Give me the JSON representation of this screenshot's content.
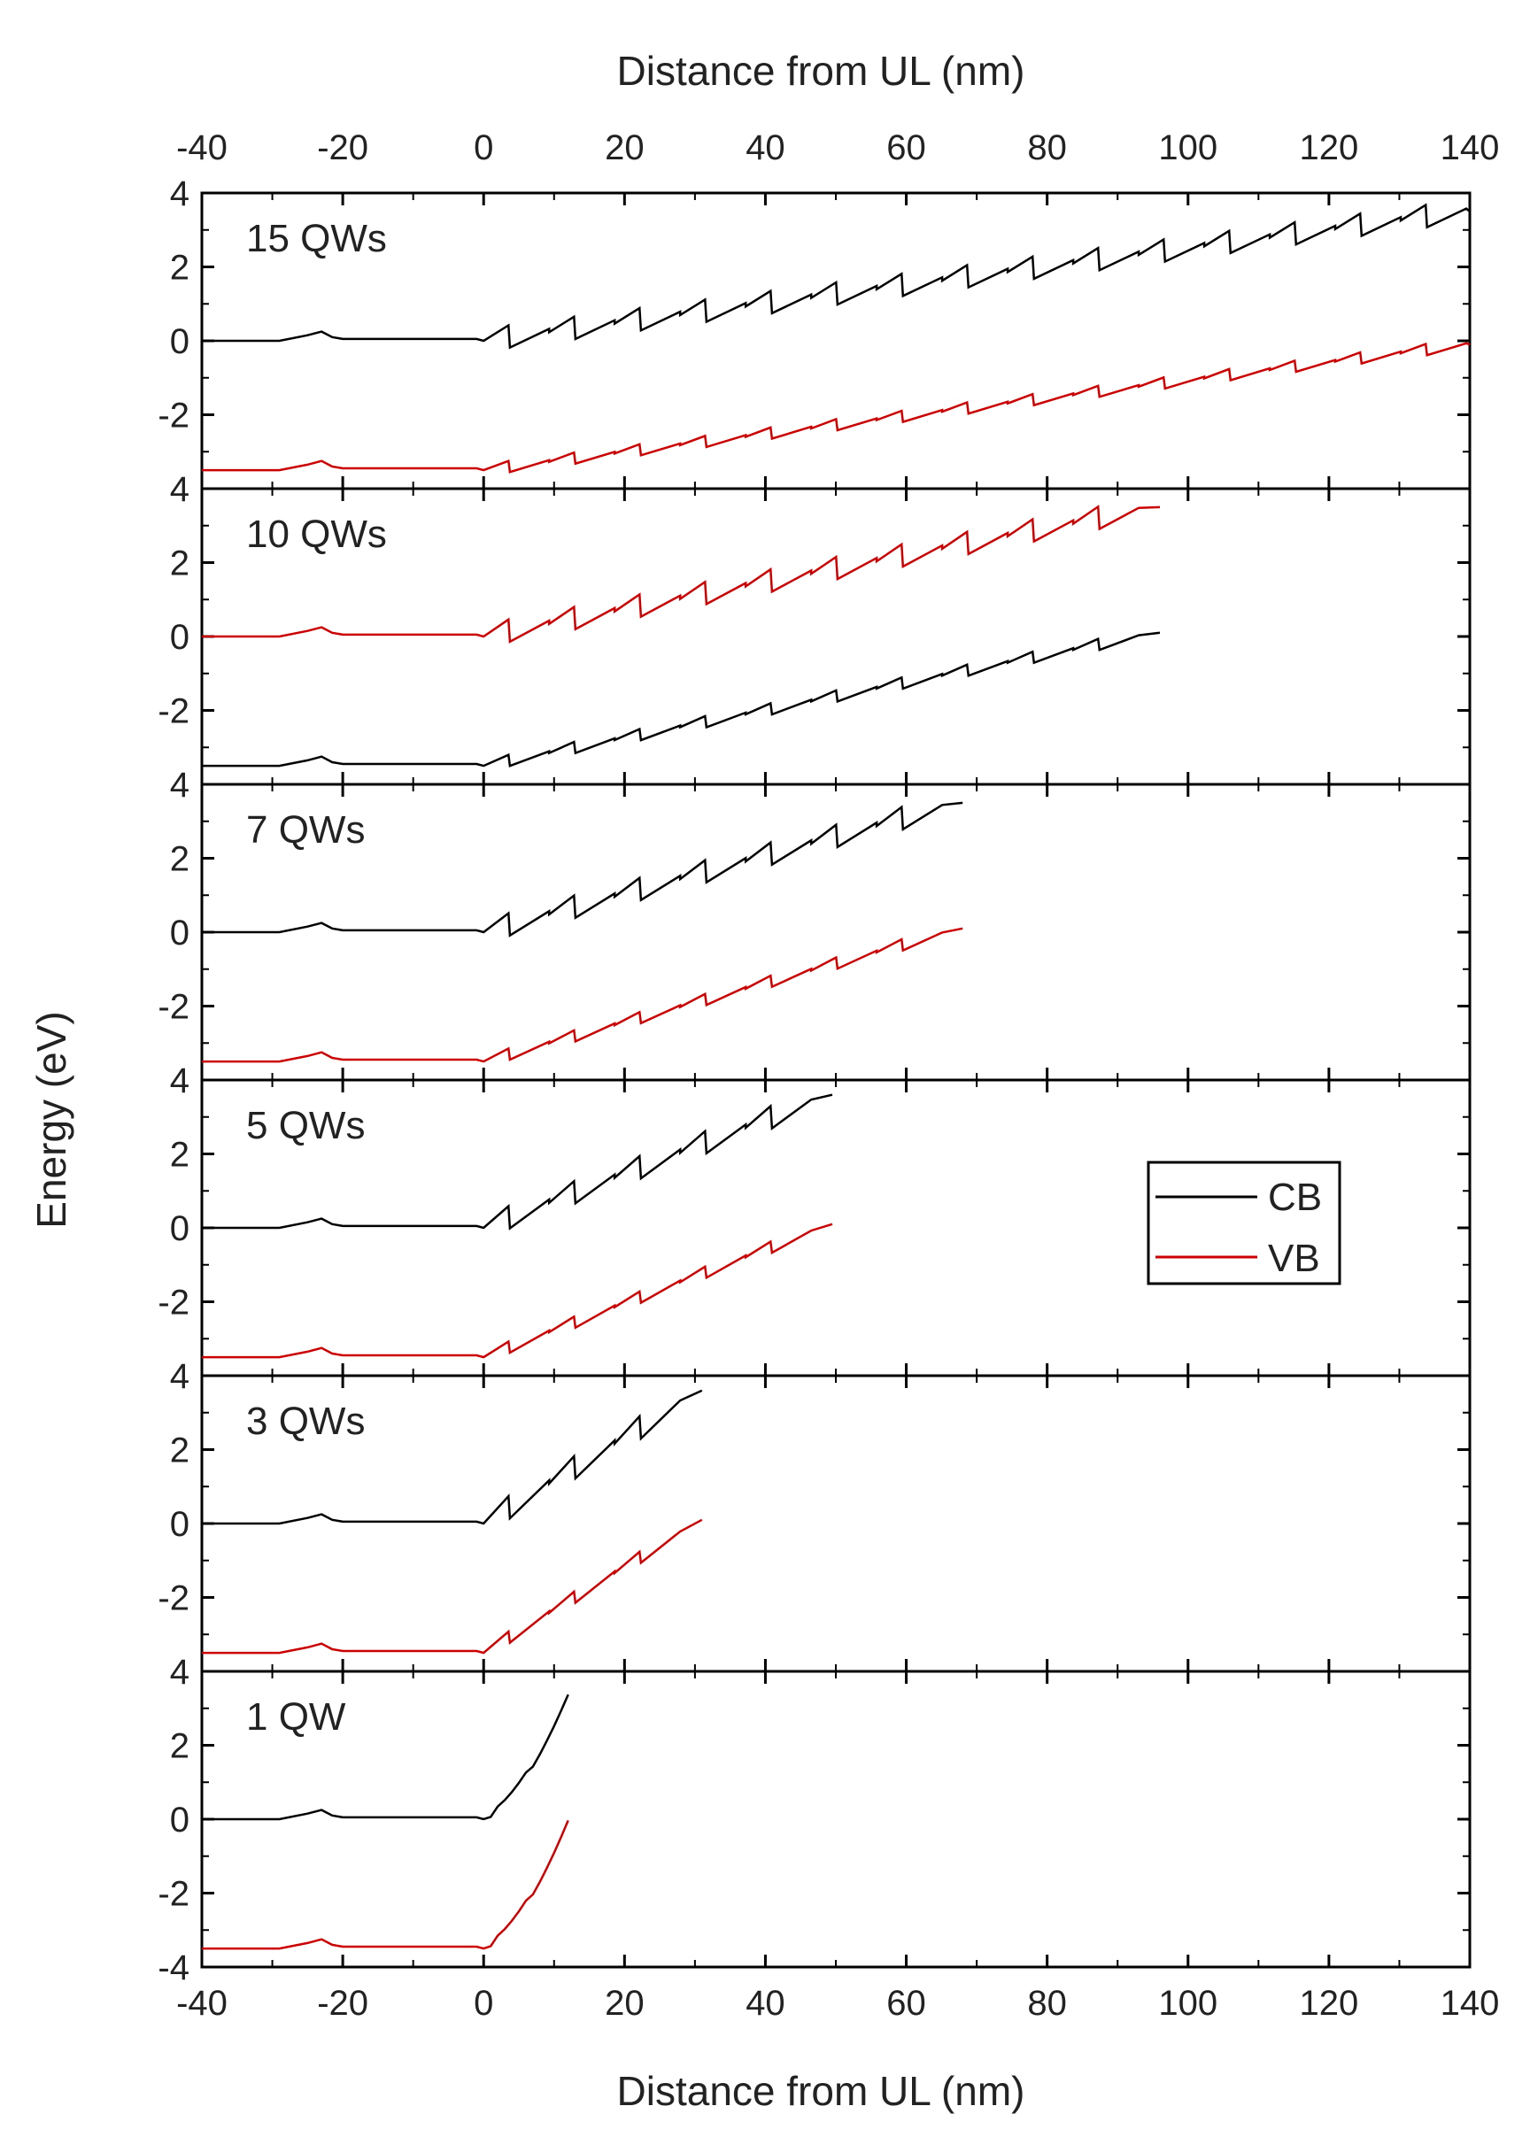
{
  "chart_data": {
    "type": "line",
    "xlabel_top": "Distance from UL (nm)",
    "xlabel_bottom": "Distance from UL (nm)",
    "ylabel": "Energy (eV)",
    "xlim": [
      -40,
      140
    ],
    "x_ticks": [
      -40,
      -20,
      0,
      20,
      40,
      60,
      80,
      100,
      120,
      140
    ],
    "x_tick_labels": [
      "-40",
      "-20",
      "0",
      "20",
      "40",
      "60",
      "80",
      "100",
      "120",
      "140"
    ],
    "ylim": [
      -4,
      4
    ],
    "y_tick_labels": [
      "4",
      "2",
      "0",
      "-2",
      "4"
    ],
    "y_tick_labels_last": [
      "4",
      "2",
      "0",
      "-2",
      "-4"
    ],
    "legend": {
      "position": "right, mid-figure",
      "entries": [
        {
          "name": "CB",
          "color": "#000000"
        },
        {
          "name": "VB",
          "color": "#cc0000"
        }
      ]
    },
    "series_colors": {
      "CB": "#000000",
      "VB": "#cc0000",
      "15_QWs_swapped_in_10_QWs_panel": true
    },
    "panels": [
      {
        "label": "15 QWs",
        "n_wells": 15,
        "x_end": 140,
        "top_start": 0.0,
        "top_end": 3.5,
        "bottom_start": -3.5,
        "bottom_end": -0.1,
        "top_color": "#000000",
        "bottom_color": "#cc0000"
      },
      {
        "label": "10 QWs",
        "n_wells": 10,
        "x_end": 96,
        "top_start": 0.0,
        "top_end": 3.5,
        "bottom_start": -3.5,
        "bottom_end": 0.1,
        "top_color": "#cc0000",
        "bottom_color": "#000000"
      },
      {
        "label": "7 QWs",
        "n_wells": 7,
        "x_end": 68,
        "top_start": 0.0,
        "top_end": 3.5,
        "bottom_start": -3.5,
        "bottom_end": 0.1,
        "top_color": "#000000",
        "bottom_color": "#cc0000"
      },
      {
        "label": "5 QWs",
        "n_wells": 5,
        "x_end": 49.5,
        "top_start": 0.0,
        "top_end": 3.6,
        "bottom_start": -3.5,
        "bottom_end": 0.1,
        "top_color": "#000000",
        "bottom_color": "#cc0000"
      },
      {
        "label": "3 QWs",
        "n_wells": 3,
        "x_end": 31,
        "top_start": 0.0,
        "top_end": 3.6,
        "bottom_start": -3.5,
        "bottom_end": 0.1,
        "top_color": "#000000",
        "bottom_color": "#cc0000"
      },
      {
        "label": "1 QW",
        "n_wells": 1,
        "x_end": 12.5,
        "top_start": 0.0,
        "top_end": 3.6,
        "bottom_start": -3.5,
        "bottom_end": 0.2,
        "top_color": "#000000",
        "bottom_color": "#cc0000"
      }
    ],
    "well_period_nm": 9.3,
    "well_depth_eV": 0.6,
    "barrier_bump": {
      "x": -23,
      "height": 0.25
    }
  }
}
